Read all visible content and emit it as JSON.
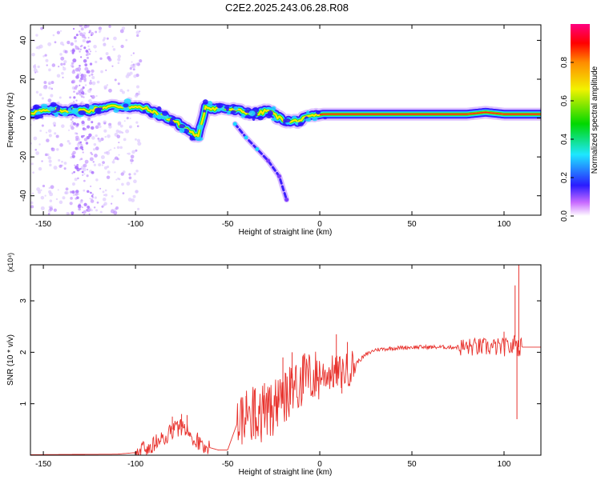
{
  "title": "C2E2.2025.243.06.28.R08",
  "chart_data": [
    {
      "type": "heatmap",
      "title": "",
      "xlabel": "Height of straight line (km)",
      "ylabel": "Frequency (Hz)",
      "xlim": [
        -157,
        120
      ],
      "ylim": [
        -50,
        48
      ],
      "xticks": [
        -150,
        -100,
        -50,
        0,
        50,
        100
      ],
      "yticks": [
        -40,
        -20,
        0,
        20,
        40
      ],
      "colorbar": {
        "label": "Normalized spectral amplitude",
        "range": [
          0,
          1
        ],
        "ticks": [
          "0.0",
          "0.2",
          "0.4",
          "0.6",
          "0.8"
        ]
      },
      "ridge": {
        "description_of_trend": "main frequency track vs height",
        "x": [
          -155,
          -145,
          -135,
          -125,
          -115,
          -105,
          -95,
          -88,
          -80,
          -75,
          -70,
          -66,
          -62,
          -58,
          -52,
          -46,
          -40,
          -34,
          -28,
          -22,
          -16,
          -10,
          -4,
          2,
          10,
          20,
          40,
          60,
          80,
          90,
          100,
          110,
          120
        ],
        "y": [
          3,
          4,
          4,
          4,
          6,
          6,
          5,
          2,
          -1,
          -4,
          -7,
          -10,
          6,
          5,
          5,
          4,
          3,
          2,
          4,
          0,
          -2,
          -1,
          1,
          2,
          2,
          2,
          2,
          2,
          2,
          3,
          2,
          2,
          2
        ]
      },
      "branch": {
        "x": [
          -46,
          -40,
          -34,
          -28,
          -22,
          -18
        ],
        "y": [
          -3,
          -10,
          -16,
          -22,
          -30,
          -42
        ]
      }
    },
    {
      "type": "line",
      "title": "",
      "xlabel": "Height of straight line (km)",
      "ylabel": "SNR (10 * v/v)",
      "scale_label": "(x10⁴)",
      "xlim": [
        -157,
        120
      ],
      "ylim": [
        0,
        3.7
      ],
      "xticks": [
        -150,
        -100,
        -50,
        0,
        50,
        100
      ],
      "yticks": [
        1,
        2,
        3
      ],
      "color": "#e8322d",
      "envelope_x": [
        -157,
        -110,
        -100,
        -95,
        -90,
        -85,
        -80,
        -75,
        -70,
        -65,
        -60,
        -55,
        -50,
        -45,
        -40,
        -35,
        -30,
        -25,
        -20,
        -15,
        -10,
        -5,
        0,
        5,
        10,
        15,
        20,
        25,
        30,
        40,
        50,
        60,
        70,
        80,
        90,
        100,
        103,
        105,
        106,
        107,
        108,
        110,
        120
      ],
      "envelope_y": [
        0.01,
        0.02,
        0.05,
        0.15,
        0.2,
        0.3,
        0.5,
        0.55,
        0.4,
        0.25,
        0.15,
        0.1,
        0.1,
        0.6,
        0.75,
        0.8,
        0.8,
        0.9,
        1.0,
        1.3,
        1.45,
        1.5,
        1.55,
        1.6,
        1.6,
        1.65,
        1.8,
        1.95,
        2.05,
        2.08,
        2.1,
        2.1,
        2.1,
        2.1,
        2.1,
        2.1,
        2.1,
        2.1,
        2.3,
        2.1,
        2.1,
        2.1,
        2.1
      ],
      "spikes": [
        {
          "x": -80,
          "y": 0.75
        },
        {
          "x": -75,
          "y": 0.8
        },
        {
          "x": -72,
          "y": 0.78
        },
        {
          "x": -40,
          "y": 1.15
        },
        {
          "x": -35,
          "y": 1.3
        },
        {
          "x": -30,
          "y": 1.4
        },
        {
          "x": -20,
          "y": 1.9
        },
        {
          "x": -15,
          "y": 2.0
        },
        {
          "x": -9,
          "y": 1.95
        },
        {
          "x": 9,
          "y": 2.35
        },
        {
          "x": 12,
          "y": 1.2
        },
        {
          "x": 15,
          "y": 2.2
        },
        {
          "x": 100,
          "y": 2.4
        },
        {
          "x": 106,
          "y": 3.3
        },
        {
          "x": 107,
          "y": 0.7
        },
        {
          "x": 108,
          "y": 3.7
        }
      ]
    }
  ]
}
